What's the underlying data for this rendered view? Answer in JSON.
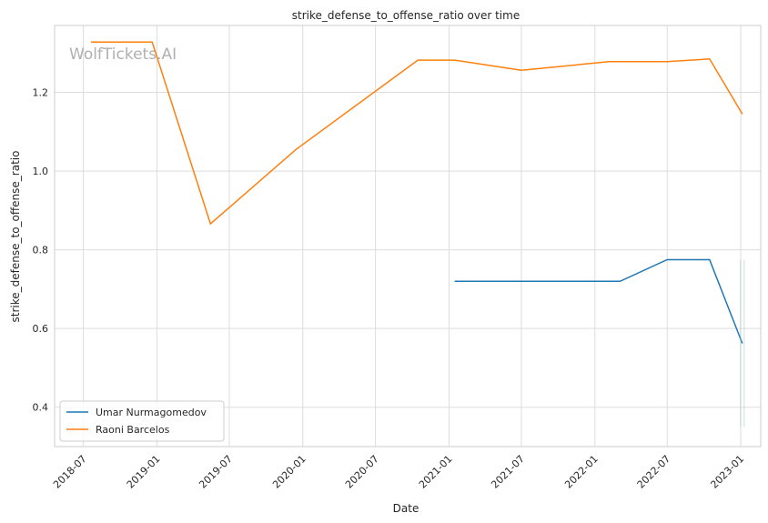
{
  "chart_data": {
    "type": "line",
    "title": "strike_defense_to_offense_ratio over time",
    "xlabel": "Date",
    "ylabel": "strike_defense_to_offense_ratio",
    "watermark": "WolfTickets.AI",
    "x_ticks": [
      "2018-07",
      "2019-01",
      "2019-07",
      "2020-01",
      "2020-07",
      "2021-01",
      "2021-07",
      "2022-01",
      "2022-07",
      "2023-01"
    ],
    "y_ticks": [
      "0.4",
      "0.6",
      "0.8",
      "1.0",
      "1.2"
    ],
    "xlim": [
      "2018-04-20",
      "2023-02-20"
    ],
    "ylim": [
      0.3,
      1.37
    ],
    "grid": true,
    "legend_position": "bottom-left",
    "series": [
      {
        "name": "Umar Nurmagomedov",
        "color": "#1f77b4",
        "points": [
          {
            "x": "2021-01-15",
            "y": 0.72
          },
          {
            "x": "2022-03-05",
            "y": 0.72
          },
          {
            "x": "2022-07-01",
            "y": 0.775
          },
          {
            "x": "2022-10-15",
            "y": 0.775
          },
          {
            "x": "2023-01-05",
            "y": 0.562
          }
        ]
      },
      {
        "name": "Raoni Barcelos",
        "color": "#ff7f0e",
        "points": [
          {
            "x": "2018-07-20",
            "y": 1.328
          },
          {
            "x": "2018-12-20",
            "y": 1.328
          },
          {
            "x": "2019-05-15",
            "y": 0.866
          },
          {
            "x": "2019-12-15",
            "y": 1.055
          },
          {
            "x": "2020-10-15",
            "y": 1.282
          },
          {
            "x": "2021-01-15",
            "y": 1.282
          },
          {
            "x": "2021-07-01",
            "y": 1.256
          },
          {
            "x": "2022-02-05",
            "y": 1.278
          },
          {
            "x": "2022-07-01",
            "y": 1.278
          },
          {
            "x": "2022-10-15",
            "y": 1.285
          },
          {
            "x": "2023-01-05",
            "y": 1.145
          }
        ]
      }
    ]
  }
}
